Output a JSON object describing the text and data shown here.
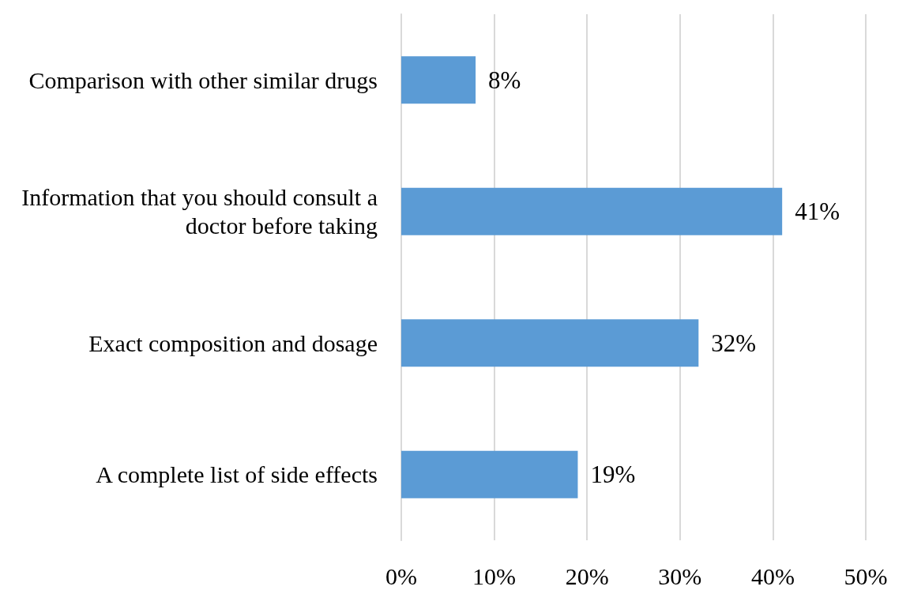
{
  "chart_data": {
    "type": "bar",
    "orientation": "horizontal",
    "categories": [
      "Comparison with other similar drugs",
      "Information that you should consult a doctor before taking",
      "Exact composition and dosage",
      "A complete list of side effects"
    ],
    "values": [
      8,
      41,
      32,
      19
    ],
    "value_labels": [
      "8%",
      "41%",
      "32%",
      "19%"
    ],
    "color": "#5b9bd5",
    "xlim": [
      0,
      50
    ],
    "xticks": [
      {
        "value": 0,
        "label": "0%"
      },
      {
        "value": 10,
        "label": "10%"
      },
      {
        "value": 20,
        "label": "20%"
      },
      {
        "value": 30,
        "label": "30%"
      },
      {
        "value": 40,
        "label": "40%"
      },
      {
        "value": 50,
        "label": "50%"
      }
    ],
    "grid": "x"
  }
}
